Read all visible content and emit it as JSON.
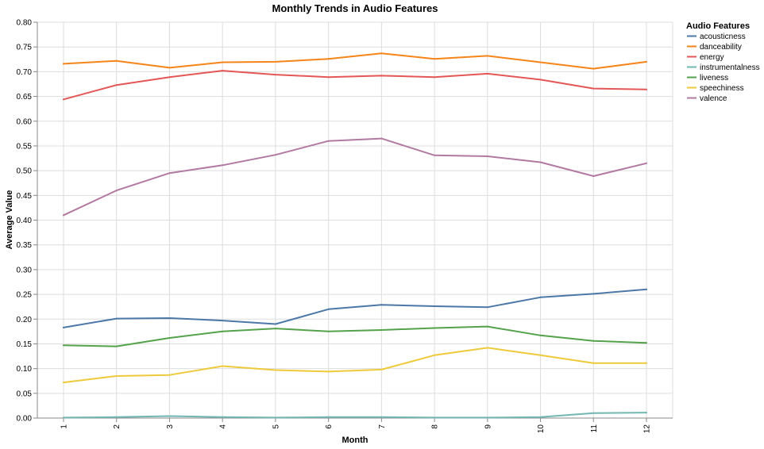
{
  "chart_data": {
    "type": "line",
    "title": "Monthly Trends in Audio Features",
    "xlabel": "Month",
    "ylabel": "Average Value",
    "x": [
      1,
      2,
      3,
      4,
      5,
      6,
      7,
      8,
      9,
      10,
      11,
      12
    ],
    "x_tick_labels": [
      "1",
      "2",
      "3",
      "4",
      "5",
      "6",
      "7",
      "8",
      "9",
      "10",
      "11",
      "12"
    ],
    "ylim": [
      0,
      0.8
    ],
    "y_ticks": [
      0,
      0.05,
      0.1,
      0.15,
      0.2,
      0.25,
      0.3,
      0.35,
      0.4,
      0.45,
      0.5,
      0.55,
      0.6,
      0.65,
      0.7,
      0.75,
      0.8
    ],
    "y_tick_labels": [
      "0.00",
      "0.05",
      "0.10",
      "0.15",
      "0.20",
      "0.25",
      "0.30",
      "0.35",
      "0.40",
      "0.45",
      "0.50",
      "0.55",
      "0.60",
      "0.65",
      "0.70",
      "0.75",
      "0.80"
    ],
    "grid": true,
    "legend": {
      "title": "Audio Features",
      "placement": "right"
    },
    "series": [
      {
        "name": "acousticness",
        "color": "#4c78a8",
        "values": [
          0.183,
          0.201,
          0.202,
          0.197,
          0.19,
          0.22,
          0.229,
          0.226,
          0.224,
          0.244,
          0.251,
          0.26
        ]
      },
      {
        "name": "danceability",
        "color": "#f58518",
        "values": [
          0.716,
          0.722,
          0.708,
          0.719,
          0.72,
          0.726,
          0.737,
          0.726,
          0.732,
          0.719,
          0.706,
          0.72
        ]
      },
      {
        "name": "energy",
        "color": "#e45756",
        "values": [
          0.644,
          0.673,
          0.689,
          0.702,
          0.694,
          0.689,
          0.692,
          0.689,
          0.696,
          0.684,
          0.666,
          0.664
        ]
      },
      {
        "name": "instrumentalness",
        "color": "#72b7b2",
        "values": [
          0.001,
          0.002,
          0.004,
          0.002,
          0.001,
          0.002,
          0.002,
          0.001,
          0.001,
          0.002,
          0.01,
          0.011
        ]
      },
      {
        "name": "liveness",
        "color": "#54a24b",
        "values": [
          0.147,
          0.145,
          0.162,
          0.175,
          0.181,
          0.175,
          0.178,
          0.182,
          0.185,
          0.167,
          0.156,
          0.152
        ]
      },
      {
        "name": "speechiness",
        "color": "#eeca3b",
        "values": [
          0.072,
          0.085,
          0.087,
          0.105,
          0.097,
          0.094,
          0.098,
          0.127,
          0.142,
          0.127,
          0.111,
          0.111
        ]
      },
      {
        "name": "valence",
        "color": "#b279a2",
        "values": [
          0.41,
          0.46,
          0.495,
          0.511,
          0.532,
          0.56,
          0.565,
          0.531,
          0.529,
          0.517,
          0.489,
          0.515
        ]
      }
    ]
  }
}
